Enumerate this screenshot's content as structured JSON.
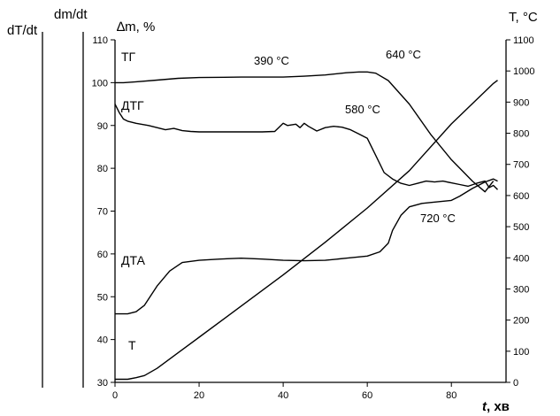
{
  "chart_data": {
    "type": "line",
    "axes": {
      "x": {
        "label_italic": "t",
        "label_unit": ", хв",
        "range": [
          0,
          93
        ],
        "ticks": [
          0,
          20,
          40,
          60,
          80
        ]
      },
      "y_left_mass": {
        "label": "∆m, %",
        "range": [
          30,
          110
        ],
        "ticks": [
          30,
          40,
          50,
          60,
          70,
          80,
          90,
          100,
          110
        ]
      },
      "y_right_temp": {
        "label_prefix": "T, ",
        "label_unit": "°C",
        "range": [
          0,
          1100
        ],
        "ticks": [
          0,
          100,
          200,
          300,
          400,
          500,
          600,
          700,
          800,
          900,
          1000,
          1100
        ]
      },
      "y_dm_dt": {
        "label": "dm/dt"
      },
      "y_dT_dt": {
        "label": "dT/dt"
      }
    },
    "grid": false,
    "series": [
      {
        "name": "ТГ",
        "axis": "y_left_mass",
        "x": [
          0,
          2,
          5,
          10,
          15,
          20,
          30,
          40,
          45,
          50,
          55,
          58,
          60,
          62,
          65,
          70,
          75,
          80,
          85,
          88,
          90
        ],
        "y": [
          100,
          100,
          100.2,
          100.6,
          101,
          101.2,
          101.3,
          101.3,
          101.5,
          101.8,
          102.3,
          102.5,
          102.5,
          102.2,
          100.5,
          95,
          88,
          82,
          77,
          74.5,
          77
        ]
      },
      {
        "name": "ДТГ",
        "axis": "y_left_mass",
        "x": [
          0,
          1,
          2,
          3,
          5,
          8,
          10,
          12,
          14,
          16,
          18,
          20,
          25,
          30,
          35,
          38,
          40,
          41,
          43,
          44,
          45,
          46,
          48,
          50,
          52,
          54,
          56,
          58,
          60,
          62,
          64,
          66,
          68,
          70,
          72,
          74,
          76,
          78,
          80,
          82,
          84,
          86,
          88,
          89,
          90,
          91
        ],
        "y": [
          95,
          93,
          91.5,
          91,
          90.5,
          90,
          89.5,
          89,
          89.3,
          88.8,
          88.6,
          88.5,
          88.5,
          88.5,
          88.5,
          88.6,
          90.5,
          90,
          90.3,
          89.5,
          90.5,
          89.8,
          88.7,
          89.5,
          89.8,
          89.6,
          89,
          88,
          87,
          83,
          79,
          77.5,
          76.5,
          76,
          76.5,
          77,
          76.8,
          77,
          76.6,
          76.2,
          75.8,
          76.5,
          77,
          75.5,
          76,
          75
        ]
      },
      {
        "name": "ДТА",
        "axis": "y_left_mass",
        "x": [
          0,
          3,
          5,
          7,
          10,
          13,
          16,
          20,
          25,
          30,
          35,
          40,
          45,
          50,
          55,
          60,
          63,
          65,
          66,
          68,
          70,
          73,
          75,
          80,
          82,
          85,
          88,
          90,
          91
        ],
        "y": [
          46,
          46,
          46.5,
          48,
          52.5,
          56,
          58,
          58.5,
          58.8,
          59,
          58.8,
          58.5,
          58.4,
          58.5,
          59,
          59.5,
          60.5,
          62.5,
          65.5,
          69,
          71,
          71.8,
          72,
          72.5,
          73.5,
          75.3,
          76.8,
          77.5,
          77
        ]
      },
      {
        "name": "T",
        "axis": "y_right_temp",
        "x": [
          0,
          3,
          5,
          7,
          10,
          15,
          20,
          30,
          40,
          50,
          60,
          70,
          80,
          90,
          91
        ],
        "y": [
          10,
          10,
          15,
          22,
          45,
          95,
          145,
          245,
          345,
          450,
          560,
          680,
          830,
          960,
          970
        ]
      }
    ],
    "annotations": [
      {
        "id": "390",
        "text": "390 °C"
      },
      {
        "id": "640",
        "text": "640 °C"
      },
      {
        "id": "580",
        "text": "580 °C"
      },
      {
        "id": "720",
        "text": "720 °C"
      }
    ]
  },
  "colors": {
    "line": "#000000",
    "background": "#ffffff"
  }
}
